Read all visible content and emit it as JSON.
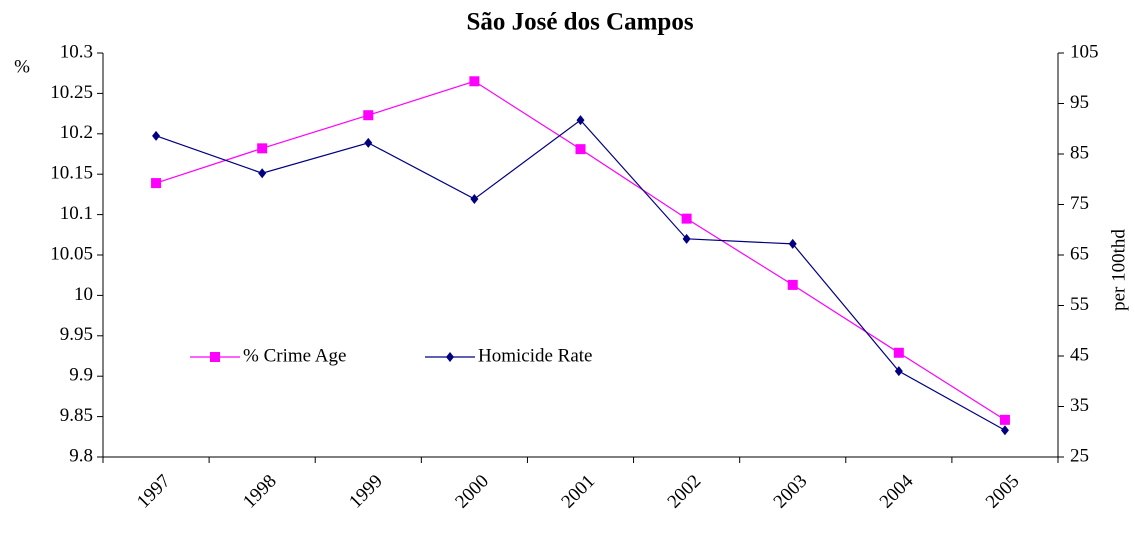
{
  "chart_data": {
    "type": "line",
    "title": "São José dos Campos",
    "y_label": "%",
    "y2_label": "per 100thd",
    "categories": [
      "1997",
      "1998",
      "1999",
      "2000",
      "2001",
      "2002",
      "2003",
      "2004",
      "2005"
    ],
    "series": [
      {
        "name": "% Crime Age",
        "color": "#ff00ff",
        "marker": "square",
        "values": [
          10.139,
          10.182,
          10.223,
          10.265,
          10.181,
          10.095,
          10.013,
          9.929,
          9.846
        ]
      },
      {
        "name": "Homicide Rate",
        "color": "#000080",
        "marker": "diamond",
        "axis": "y2",
        "values": [
          88.6,
          81.2,
          87.2,
          76.1,
          91.7,
          68.2,
          67.2,
          42.0,
          30.3
        ]
      }
    ],
    "ylim": [
      9.8,
      10.3
    ],
    "yticks": [
      9.8,
      9.85,
      9.9,
      9.95,
      10,
      10.05,
      10.1,
      10.15,
      10.2,
      10.25,
      10.3
    ],
    "y2lim": [
      25,
      105
    ],
    "y2ticks": [
      25,
      35,
      45,
      55,
      65,
      75,
      85,
      95,
      105
    ],
    "grid": false,
    "legend": "center-left"
  }
}
